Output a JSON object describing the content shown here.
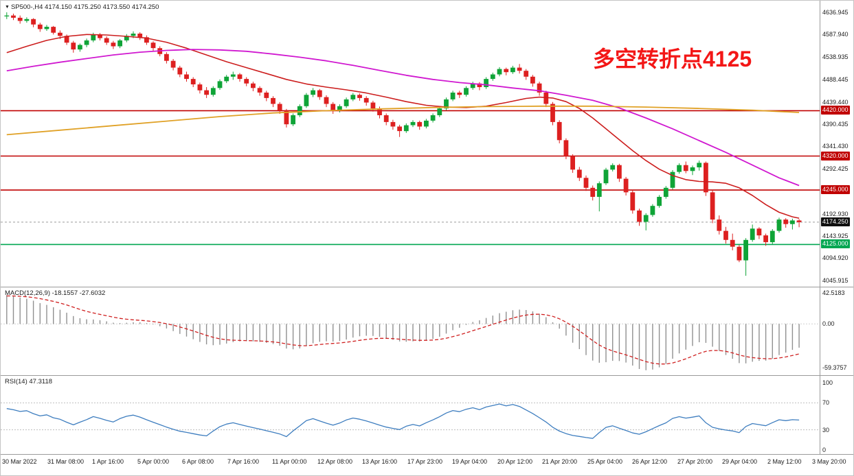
{
  "header": {
    "dropdown_icon": "▼",
    "symbol": "SP500-",
    "timeframe": "H4",
    "open": "4174.150",
    "high": "4175.250",
    "low": "4173.550",
    "close": "4174.250",
    "title": "SP500-,H4 4174.150 4175.250 4173.550 4174.250"
  },
  "colors": {
    "bull": "#0fa437",
    "bear": "#dd2020",
    "macd_hist": "#909090",
    "macd_signal": "#cf1f1f",
    "rsi_line": "#3d7dbf",
    "current_badge": "#101010",
    "annotation": "#f31616"
  },
  "chart_data": [
    {
      "type": "candlestick",
      "panel": "price",
      "symbol": "SP500-",
      "timeframe": "H4",
      "ylim": [
        4031.9,
        4662.6
      ],
      "y_ticks": [
        "4636.945",
        "4587.940",
        "4538.935",
        "4488.445",
        "4439.440",
        "4390.435",
        "4341.430",
        "4292.425",
        "4192.930",
        "4143.925",
        "4094.920",
        "4045.915"
      ],
      "x_labels": [
        "30 Mar 2022",
        "31 Mar 08:00",
        "1 Apr 16:00",
        "5 Apr 00:00",
        "6 Apr 08:00",
        "7 Apr 16:00",
        "11 Apr 00:00",
        "12 Apr 08:00",
        "13 Apr 16:00",
        "17 Apr 23:00",
        "19 Apr 04:00",
        "20 Apr 12:00",
        "21 Apr 20:00",
        "25 Apr 04:00",
        "26 Apr 12:00",
        "27 Apr 20:00",
        "29 Apr 04:00",
        "2 May 12:00",
        "3 May 20:00"
      ],
      "current_price": 4174.25,
      "current_price_label": "4174.250",
      "levels": [
        {
          "value": 4420.0,
          "label": "4420.000",
          "color": "#c00000"
        },
        {
          "value": 4320.0,
          "label": "4320.000",
          "color": "#c00000"
        },
        {
          "value": 4245.0,
          "label": "4245.000",
          "color": "#c00000"
        },
        {
          "value": 4125.0,
          "label": "4125.000",
          "color": "#00a651"
        }
      ],
      "annotation": {
        "text": "多空转折点4125",
        "color": "#f31616"
      },
      "moving_averages": [
        {
          "name": "ma-fast-red",
          "color": "#cc1d1d",
          "width": 1.6,
          "points": [
            [
              0,
              4548
            ],
            [
              3,
              4562
            ],
            [
              6,
              4575
            ],
            [
              9,
              4584
            ],
            [
              12,
              4588
            ],
            [
              15,
              4587
            ],
            [
              18,
              4584
            ],
            [
              21,
              4580
            ],
            [
              24,
              4571
            ],
            [
              27,
              4558
            ],
            [
              30,
              4543
            ],
            [
              33,
              4528
            ],
            [
              36,
              4515
            ],
            [
              39,
              4502
            ],
            [
              42,
              4489
            ],
            [
              45,
              4479
            ],
            [
              48,
              4472
            ],
            [
              51,
              4466
            ],
            [
              54,
              4459
            ],
            [
              57,
              4450
            ],
            [
              60,
              4440
            ],
            [
              63,
              4432
            ],
            [
              66,
              4428
            ],
            [
              69,
              4427
            ],
            [
              72,
              4430
            ],
            [
              75,
              4438
            ],
            [
              78,
              4447
            ],
            [
              80,
              4450
            ],
            [
              82,
              4448
            ],
            [
              84,
              4440
            ],
            [
              86,
              4425
            ],
            [
              88,
              4404
            ],
            [
              90,
              4380
            ],
            [
              92,
              4356
            ],
            [
              94,
              4332
            ],
            [
              96,
              4310
            ],
            [
              98,
              4291
            ],
            [
              100,
              4277
            ],
            [
              102,
              4268
            ],
            [
              104,
              4264
            ],
            [
              106,
              4263
            ],
            [
              108,
              4260
            ],
            [
              110,
              4250
            ],
            [
              112,
              4233
            ],
            [
              114,
              4213
            ],
            [
              116,
              4196
            ],
            [
              118,
              4186
            ],
            [
              119,
              4183
            ]
          ]
        },
        {
          "name": "ma-slow-magenta",
          "color": "#d018d0",
          "width": 1.8,
          "points": [
            [
              0,
              4508
            ],
            [
              4,
              4518
            ],
            [
              8,
              4527
            ],
            [
              12,
              4535
            ],
            [
              16,
              4543
            ],
            [
              20,
              4549
            ],
            [
              24,
              4553
            ],
            [
              28,
              4555
            ],
            [
              32,
              4554
            ],
            [
              36,
              4551
            ],
            [
              40,
              4545
            ],
            [
              44,
              4538
            ],
            [
              48,
              4530
            ],
            [
              52,
              4520
            ],
            [
              56,
              4509
            ],
            [
              60,
              4498
            ],
            [
              64,
              4489
            ],
            [
              68,
              4482
            ],
            [
              72,
              4477
            ],
            [
              76,
              4470
            ],
            [
              80,
              4464
            ],
            [
              84,
              4454
            ],
            [
              88,
              4443
            ],
            [
              92,
              4426
            ],
            [
              96,
              4404
            ],
            [
              100,
              4380
            ],
            [
              104,
              4354
            ],
            [
              108,
              4328
            ],
            [
              112,
              4300
            ],
            [
              116,
              4272
            ],
            [
              119,
              4255
            ]
          ]
        },
        {
          "name": "ma-long-orange",
          "color": "#e0a126",
          "width": 1.8,
          "points": [
            [
              0,
              4367
            ],
            [
              8,
              4377
            ],
            [
              16,
              4387
            ],
            [
              24,
              4397
            ],
            [
              32,
              4407
            ],
            [
              40,
              4415
            ],
            [
              48,
              4420
            ],
            [
              56,
              4424
            ],
            [
              64,
              4427
            ],
            [
              72,
              4429
            ],
            [
              80,
              4430
            ],
            [
              88,
              4430
            ],
            [
              96,
              4428
            ],
            [
              104,
              4425
            ],
            [
              112,
              4421
            ],
            [
              119,
              4416
            ]
          ]
        }
      ],
      "candles": [
        [
          4628,
          4637,
          4622,
          4630
        ],
        [
          4630,
          4634,
          4620,
          4625
        ],
        [
          4625,
          4630,
          4612,
          4618
        ],
        [
          4618,
          4626,
          4614,
          4622
        ],
        [
          4622,
          4624,
          4604,
          4610
        ],
        [
          4610,
          4614,
          4594,
          4600
        ],
        [
          4600,
          4609,
          4596,
          4605
        ],
        [
          4605,
          4607,
          4588,
          4592
        ],
        [
          4592,
          4597,
          4578,
          4585
        ],
        [
          4585,
          4588,
          4565,
          4570
        ],
        [
          4570,
          4574,
          4548,
          4555
        ],
        [
          4555,
          4568,
          4550,
          4565
        ],
        [
          4565,
          4579,
          4560,
          4575
        ],
        [
          4575,
          4592,
          4571,
          4588
        ],
        [
          4588,
          4591,
          4575,
          4580
        ],
        [
          4580,
          4584,
          4565,
          4570
        ],
        [
          4570,
          4574,
          4556,
          4562
        ],
        [
          4562,
          4578,
          4558,
          4575
        ],
        [
          4575,
          4589,
          4571,
          4585
        ],
        [
          4585,
          4595,
          4580,
          4590
        ],
        [
          4590,
          4593,
          4576,
          4582
        ],
        [
          4582,
          4586,
          4565,
          4570
        ],
        [
          4570,
          4573,
          4552,
          4558
        ],
        [
          4558,
          4562,
          4540,
          4545
        ],
        [
          4545,
          4549,
          4524,
          4530
        ],
        [
          4530,
          4534,
          4509,
          4515
        ],
        [
          4515,
          4519,
          4494,
          4500
        ],
        [
          4500,
          4506,
          4484,
          4490
        ],
        [
          4490,
          4494,
          4472,
          4478
        ],
        [
          4478,
          4482,
          4458,
          4465
        ],
        [
          4465,
          4472,
          4448,
          4455
        ],
        [
          4455,
          4474,
          4451,
          4470
        ],
        [
          4470,
          4489,
          4466,
          4485
        ],
        [
          4485,
          4499,
          4481,
          4495
        ],
        [
          4495,
          4506,
          4488,
          4500
        ],
        [
          4500,
          4503,
          4484,
          4490
        ],
        [
          4490,
          4494,
          4474,
          4480
        ],
        [
          4480,
          4484,
          4463,
          4470
        ],
        [
          4470,
          4474,
          4453,
          4460
        ],
        [
          4460,
          4464,
          4441,
          4448
        ],
        [
          4448,
          4452,
          4428,
          4435
        ],
        [
          4435,
          4439,
          4413,
          4420
        ],
        [
          4420,
          4424,
          4383,
          4390
        ],
        [
          4390,
          4414,
          4386,
          4410
        ],
        [
          4410,
          4434,
          4406,
          4430
        ],
        [
          4430,
          4459,
          4426,
          4455
        ],
        [
          4455,
          4470,
          4450,
          4465
        ],
        [
          4465,
          4468,
          4444,
          4450
        ],
        [
          4450,
          4454,
          4428,
          4435
        ],
        [
          4435,
          4439,
          4413,
          4420
        ],
        [
          4420,
          4434,
          4416,
          4430
        ],
        [
          4430,
          4449,
          4426,
          4445
        ],
        [
          4445,
          4459,
          4441,
          4455
        ],
        [
          4455,
          4458,
          4442,
          4448
        ],
        [
          4448,
          4452,
          4431,
          4438
        ],
        [
          4438,
          4442,
          4418,
          4425
        ],
        [
          4425,
          4429,
          4403,
          4410
        ],
        [
          4410,
          4414,
          4388,
          4395
        ],
        [
          4395,
          4400,
          4378,
          4385
        ],
        [
          4385,
          4389,
          4362,
          4375
        ],
        [
          4375,
          4392,
          4371,
          4388
        ],
        [
          4388,
          4399,
          4384,
          4395
        ],
        [
          4395,
          4398,
          4378,
          4385
        ],
        [
          4385,
          4402,
          4381,
          4398
        ],
        [
          4398,
          4414,
          4394,
          4410
        ],
        [
          4410,
          4429,
          4406,
          4425
        ],
        [
          4425,
          4449,
          4421,
          4445
        ],
        [
          4445,
          4464,
          4441,
          4460
        ],
        [
          4460,
          4464,
          4448,
          4455
        ],
        [
          4455,
          4474,
          4451,
          4470
        ],
        [
          4470,
          4484,
          4466,
          4480
        ],
        [
          4480,
          4483,
          4465,
          4472
        ],
        [
          4472,
          4494,
          4468,
          4490
        ],
        [
          4490,
          4504,
          4486,
          4500
        ],
        [
          4500,
          4516,
          4496,
          4512
        ],
        [
          4512,
          4515,
          4498,
          4505
        ],
        [
          4505,
          4519,
          4501,
          4515
        ],
        [
          4515,
          4523,
          4502,
          4508
        ],
        [
          4508,
          4512,
          4488,
          4495
        ],
        [
          4495,
          4499,
          4473,
          4480
        ],
        [
          4480,
          4484,
          4453,
          4460
        ],
        [
          4460,
          4464,
          4428,
          4435
        ],
        [
          4435,
          4439,
          4388,
          4395
        ],
        [
          4395,
          4399,
          4348,
          4355
        ],
        [
          4355,
          4359,
          4313,
          4320
        ],
        [
          4320,
          4324,
          4283,
          4290
        ],
        [
          4290,
          4296,
          4265,
          4272
        ],
        [
          4272,
          4277,
          4243,
          4250
        ],
        [
          4250,
          4255,
          4222,
          4230
        ],
        [
          4230,
          4264,
          4198,
          4260
        ],
        [
          4260,
          4294,
          4256,
          4290
        ],
        [
          4290,
          4304,
          4286,
          4300
        ],
        [
          4300,
          4303,
          4263,
          4270
        ],
        [
          4270,
          4274,
          4233,
          4240
        ],
        [
          4240,
          4244,
          4193,
          4200
        ],
        [
          4200,
          4204,
          4166,
          4175
        ],
        [
          4175,
          4194,
          4156,
          4190
        ],
        [
          4190,
          4214,
          4186,
          4210
        ],
        [
          4210,
          4234,
          4206,
          4230
        ],
        [
          4230,
          4254,
          4226,
          4250
        ],
        [
          4250,
          4289,
          4246,
          4285
        ],
        [
          4285,
          4304,
          4281,
          4300
        ],
        [
          4300,
          4308,
          4282,
          4287
        ],
        [
          4287,
          4299,
          4278,
          4295
        ],
        [
          4295,
          4310,
          4288,
          4305
        ],
        [
          4305,
          4308,
          4232,
          4240
        ],
        [
          4240,
          4244,
          4172,
          4180
        ],
        [
          4180,
          4189,
          4147,
          4155
        ],
        [
          4155,
          4164,
          4127,
          4135
        ],
        [
          4135,
          4149,
          4112,
          4120
        ],
        [
          4120,
          4124,
          4086,
          4090
        ],
        [
          4090,
          4139,
          4056,
          4135
        ],
        [
          4135,
          4169,
          4131,
          4160
        ],
        [
          4160,
          4163,
          4137,
          4145
        ],
        [
          4145,
          4149,
          4122,
          4130
        ],
        [
          4130,
          4159,
          4126,
          4155
        ],
        [
          4155,
          4184,
          4151,
          4180
        ],
        [
          4180,
          4183,
          4162,
          4170
        ],
        [
          4170,
          4182,
          4158,
          4178
        ],
        [
          4178,
          4181,
          4163,
          4174.25
        ]
      ]
    },
    {
      "type": "bar",
      "panel": "macd",
      "name": "MACD(12,26,9)",
      "label": "MACD(12,26,9) -18.1557 -27.6032",
      "value_main": "-18.1557",
      "value_signal": "-27.6032",
      "y_ticks": [
        "42.5183",
        "0.00",
        "-59.3757"
      ],
      "ylim": [
        -70,
        50
      ],
      "calc": {
        "fast": 12,
        "slow": 26,
        "signal": 9,
        "seed_fast": 4600,
        "seed_slow": 4560,
        "seed_signal": 38
      }
    },
    {
      "type": "line",
      "panel": "rsi",
      "name": "RSI(14)",
      "label": "RSI(14) 47.3118",
      "value": "47.3118",
      "y_ticks": [
        "100",
        "70",
        "30",
        "0"
      ],
      "levels": [
        70,
        30
      ],
      "ylim": [
        0,
        100
      ],
      "calc": {
        "period": 14,
        "seed_gain": 8,
        "seed_loss": 5
      }
    }
  ]
}
